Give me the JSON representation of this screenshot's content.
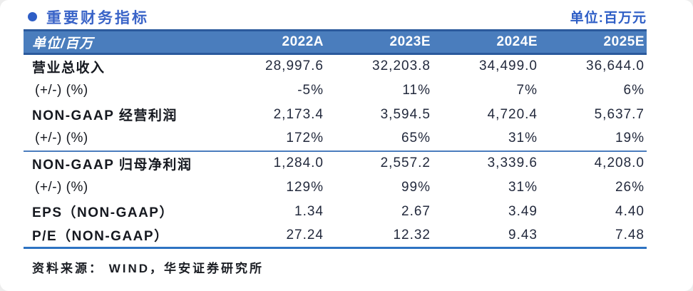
{
  "header": {
    "title": "重要财务指标",
    "unit_label": "单位:百万元"
  },
  "table": {
    "columns": [
      "单位/百万",
      "2022A",
      "2023E",
      "2024E",
      "2025E"
    ],
    "rows": [
      {
        "label": "营业总收入",
        "style": "bold",
        "values": [
          "28,997.6",
          "32,203.8",
          "34,499.0",
          "36,644.0"
        ]
      },
      {
        "label": "(+/-) (%)",
        "style": "sub",
        "values": [
          "-5%",
          "11%",
          "7%",
          "6%"
        ]
      },
      {
        "label": "NON-GAAP 经营利润",
        "style": "main",
        "values": [
          "2,173.4",
          "3,594.5",
          "4,720.4",
          "5,637.7"
        ]
      },
      {
        "label": "(+/-) (%)",
        "style": "sub",
        "separator_after": true,
        "values": [
          "172%",
          "65%",
          "31%",
          "19%"
        ]
      },
      {
        "label": "NON-GAAP 归母净利润",
        "style": "main",
        "values": [
          "1,284.0",
          "2,557.2",
          "3,339.6",
          "4,208.0"
        ]
      },
      {
        "label": "(+/-) (%)",
        "style": "sub",
        "values": [
          "129%",
          "99%",
          "31%",
          "26%"
        ]
      },
      {
        "label": "EPS（NON-GAAP）",
        "style": "main",
        "values": [
          "1.34",
          "2.67",
          "3.49",
          "4.40"
        ]
      },
      {
        "label": "P/E（NON-GAAP）",
        "style": "main",
        "values": [
          "27.24",
          "12.32",
          "9.43",
          "7.48"
        ]
      }
    ]
  },
  "footer": {
    "source": "资料来源： WIND，华安证券研究所"
  },
  "colors": {
    "accent_blue": "#3a64c8",
    "bullet_blue": "#2e5ec6",
    "header_bg": "#4a7dbd",
    "header_border": "#2b5a9d",
    "mid_divider": "#4a7dbd",
    "bottom_rule": "#2d73c2",
    "number_text": "#232a3d"
  }
}
